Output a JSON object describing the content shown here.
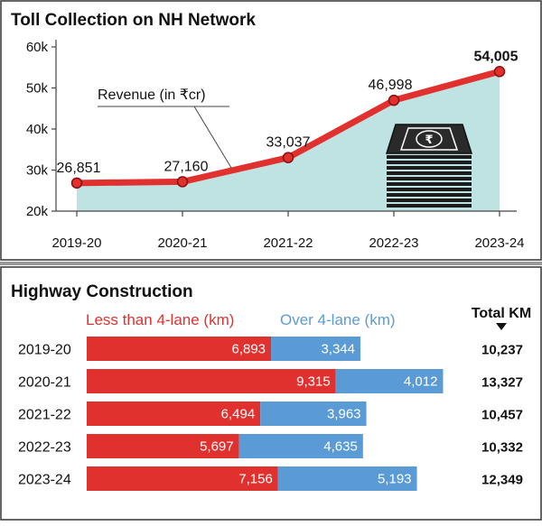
{
  "chart_data": [
    {
      "type": "area",
      "title": "Toll Collection on NH Network",
      "x": [
        "2019-20",
        "2020-21",
        "2021-22",
        "2022-23",
        "2023-24"
      ],
      "y_ticks": [
        "20k",
        "30k",
        "40k",
        "50k",
        "60k"
      ],
      "ylim": [
        20000,
        60000
      ],
      "series": [
        {
          "name": "Revenue (in ₹cr)",
          "values": [
            26851,
            27160,
            33037,
            46998,
            54005
          ],
          "labels": [
            "26,851",
            "27,160",
            "33,037",
            "46,998",
            "54,005"
          ],
          "color": "#e0312f"
        }
      ],
      "area_color": "#bfe3e3",
      "grid": false
    },
    {
      "type": "bar",
      "orientation": "horizontal",
      "stacked": true,
      "title": "Highway Construction",
      "categories": [
        "2019-20",
        "2020-21",
        "2021-22",
        "2022-23",
        "2023-24"
      ],
      "series": [
        {
          "name": "Less than 4-lane (km)",
          "values": [
            6893,
            9315,
            6494,
            5697,
            7156
          ],
          "labels": [
            "6,893",
            "9,315",
            "6,494",
            "5,697",
            "7,156"
          ],
          "color": "#e0312f"
        },
        {
          "name": "Over 4-lane (km)",
          "values": [
            3344,
            4012,
            3963,
            4635,
            5193
          ],
          "labels": [
            "3,344",
            "4,012",
            "3,963",
            "4,635",
            "5,193"
          ],
          "color": "#5b9bd5"
        }
      ],
      "total_header": "Total KM",
      "totals": [
        "10,237",
        "13,327",
        "10,457",
        "10,332",
        "12,349"
      ]
    }
  ]
}
